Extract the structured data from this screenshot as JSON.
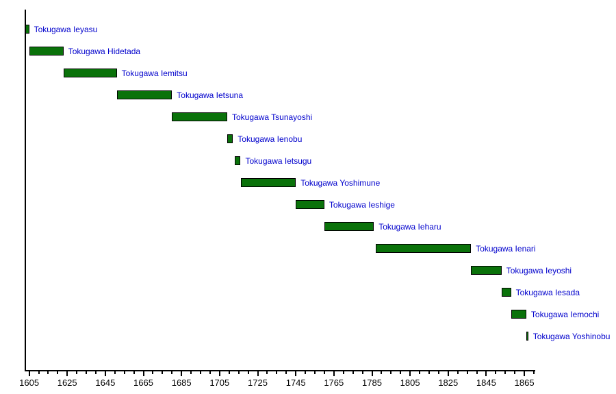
{
  "figure": {
    "background_color": "#ffffff",
    "label_color": "#0000cc",
    "bar_fill_color": "#0a720a",
    "bar_border_color": "#000000",
    "axis_color": "#000000"
  },
  "chart_data": {
    "type": "bar",
    "subtype": "gantt-timeline",
    "title": "",
    "xlabel": "",
    "ylabel": "",
    "grid": false,
    "legend": "none",
    "tasks": [
      {
        "label": "Tokugawa Ieyasu",
        "start": 1603,
        "end": 1605
      },
      {
        "label": "Tokugawa Hidetada",
        "start": 1605,
        "end": 1623
      },
      {
        "label": "Tokugawa Iemitsu",
        "start": 1623,
        "end": 1651
      },
      {
        "label": "Tokugawa Ietsuna",
        "start": 1651,
        "end": 1680
      },
      {
        "label": "Tokugawa Tsunayoshi",
        "start": 1680,
        "end": 1709
      },
      {
        "label": "Tokugawa Ienobu",
        "start": 1709,
        "end": 1712
      },
      {
        "label": "Tokugawa Ietsugu",
        "start": 1713,
        "end": 1716
      },
      {
        "label": "Tokugawa Yoshimune",
        "start": 1716,
        "end": 1745
      },
      {
        "label": "Tokugawa Ieshige",
        "start": 1745,
        "end": 1760
      },
      {
        "label": "Tokugawa Ieharu",
        "start": 1760,
        "end": 1786
      },
      {
        "label": "Tokugawa Ienari",
        "start": 1787,
        "end": 1837
      },
      {
        "label": "Tokugawa Ieyoshi",
        "start": 1837,
        "end": 1853
      },
      {
        "label": "Tokugawa Iesada",
        "start": 1853,
        "end": 1858
      },
      {
        "label": "Tokugawa Iemochi",
        "start": 1858,
        "end": 1866
      },
      {
        "label": "Tokugawa Yoshinobu",
        "start": 1866,
        "end": 1867
      }
    ],
    "x_axis": {
      "min": 1603,
      "max": 1870,
      "first_tick": 1605,
      "minor_tick_interval": 5,
      "major_tick_interval": 20,
      "tick_labels": [
        "1605",
        "1625",
        "1645",
        "1665",
        "1685",
        "1705",
        "1725",
        "1745",
        "1765",
        "1785",
        "1805",
        "1825",
        "1845",
        "1865"
      ]
    }
  }
}
